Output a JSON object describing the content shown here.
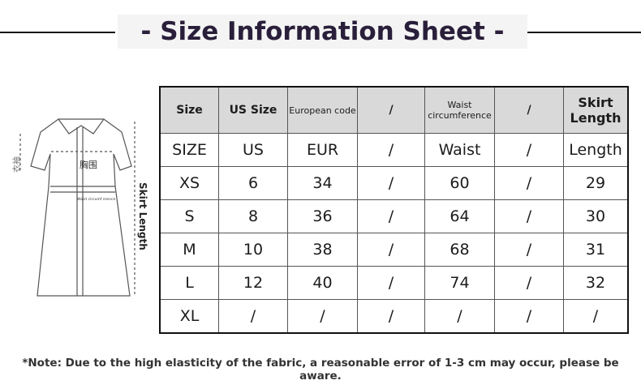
{
  "header": {
    "title": "- Size Information Sheet -"
  },
  "figure": {
    "sleeve_label": "衣袖",
    "chest_label": "胸围",
    "waist_label": "Waist circumf erence",
    "length_label": "Skirt Length"
  },
  "table": {
    "header": [
      "Size",
      "US Size",
      "European code",
      "/",
      "Waist circumference",
      "/",
      "Skirt Length"
    ],
    "rows": [
      [
        "SIZE",
        "US",
        "EUR",
        "/",
        "Waist",
        "/",
        "Length"
      ],
      [
        "XS",
        6,
        34,
        "/",
        60,
        "/",
        29
      ],
      [
        "S",
        8,
        36,
        "/",
        64,
        "/",
        30
      ],
      [
        "M",
        10,
        38,
        "/",
        68,
        "/",
        31
      ],
      [
        "L",
        12,
        40,
        "/",
        74,
        "/",
        32
      ],
      [
        "XL",
        "/",
        "/",
        "/",
        "/",
        "/",
        "/"
      ]
    ]
  },
  "footer": {
    "note": "*Note: Due to the high elasticity of the fabric, a reasonable error of 1-3 cm may occur, please be aware."
  }
}
